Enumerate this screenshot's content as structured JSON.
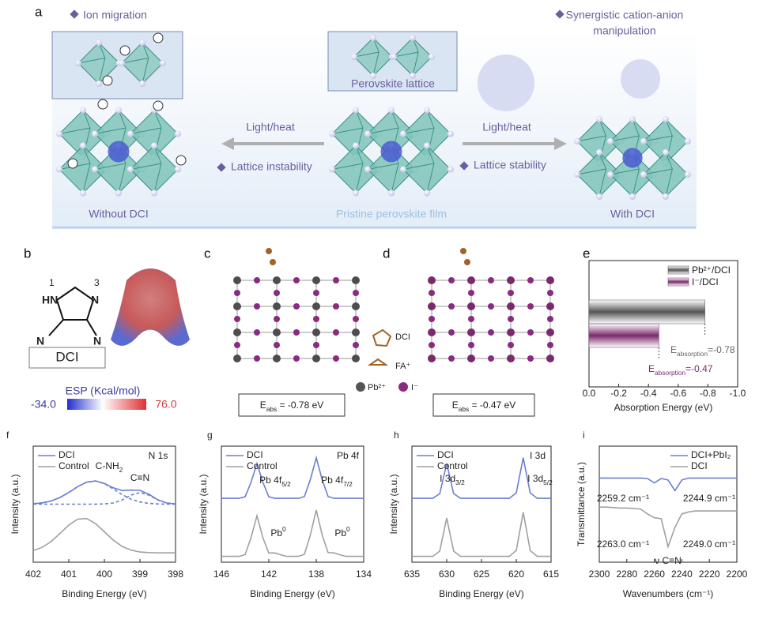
{
  "panel_a": {
    "label": "a",
    "ion_migration": "Ion migration",
    "perovskite_lattice": "Perovskite lattice",
    "left_arrow": "Light/heat",
    "lattice_instability": "Lattice instability",
    "right_arrow": "Light/heat",
    "lattice_stability": "Lattice stability",
    "synergistic": [
      "Synergistic cation-anion",
      "manipulation"
    ],
    "without": "Without DCI",
    "pristine": "Pristine perovskite film",
    "with": "With DCI"
  },
  "panel_b": {
    "label": "b",
    "atom_numbers": [
      "1",
      "3"
    ],
    "atoms": [
      "HN",
      "N",
      "N",
      "N"
    ],
    "name": "DCI",
    "esp_title": "ESP (Kcal/mol)",
    "esp_min": "-34.0",
    "esp_max": "76.0"
  },
  "panel_c": {
    "label": "c",
    "legend": [
      "DCI",
      "FA⁺",
      "Pb²⁺",
      "I⁻"
    ],
    "energy": {
      "text": "E",
      "sub": "abs",
      "tail": " = -0.78 eV"
    }
  },
  "panel_d": {
    "label": "d",
    "energy": {
      "text": "E",
      "sub": "abs",
      "tail": " = -0.47 eV"
    }
  },
  "chart_data": [
    {
      "type": "barh",
      "panel_label": "e",
      "xlabel": "Absorption Energy (eV)",
      "xlim": [
        0,
        -1
      ],
      "xticks": [
        {
          "value": 0,
          "label": "0.0"
        },
        -0.2,
        -0.4,
        -0.6,
        -0.8,
        {
          "value": -1,
          "label": "-1.0"
        }
      ],
      "legend": "upper right",
      "series": [
        {
          "name": "Pb²⁺/DCI",
          "color": "#555555",
          "values": [
            -0.78
          ]
        },
        {
          "name": "I⁻/DCI",
          "color": "#7a2a6c",
          "values": [
            -0.47
          ]
        }
      ],
      "annotations": [
        {
          "text": "E",
          "sub": "absorption",
          "tail": "=-0.78",
          "color": "#666666"
        },
        {
          "text": "E",
          "sub": "absorption",
          "tail": "=-0.47",
          "color": "#7a2a6c"
        }
      ]
    },
    {
      "type": "line",
      "panel_label": "f",
      "xlabel": "Binding Energy (eV)",
      "ylabel": "Intensity (a.u.)",
      "xlim": [
        402,
        398
      ],
      "xticks": [
        402,
        401,
        400,
        399,
        398
      ],
      "ylim": [
        0,
        10
      ],
      "legend": "upper left",
      "x": [
        402,
        401.75,
        401.5,
        401.25,
        401,
        400.75,
        400.5,
        400.25,
        400,
        399.75,
        399.5,
        399.25,
        399,
        398.75,
        398.5,
        398.25,
        398
      ],
      "series": [
        {
          "name": "DCI",
          "color": "#6b7fcf",
          "values": [
            5.04,
            5.11,
            5.27,
            5.57,
            6.01,
            6.51,
            6.89,
            7.0,
            6.78,
            6.41,
            6.18,
            6.21,
            6.19,
            5.85,
            5.38,
            5.1,
            5.02
          ]
        },
        {
          "name": "Control",
          "color": "#a0a0a0",
          "values": [
            1.0,
            1.28,
            1.77,
            2.47,
            3.2,
            3.71,
            3.76,
            3.33,
            2.62,
            1.9,
            1.36,
            1.04,
            0.88,
            0.83,
            0.8,
            0.8,
            0.8
          ]
        },
        {
          "color": "#6b7fcf",
          "dash": true,
          "values": [
            5.04,
            5.11,
            5.27,
            5.57,
            6.01,
            6.51,
            6.89,
            7.0,
            6.76,
            6.31,
            5.82,
            5.43,
            5.19,
            5.07,
            5.02,
            5.0,
            5.0
          ]
        },
        {
          "color": "#6b7fcf",
          "dash": true,
          "values": [
            5.0,
            5.0,
            5.0,
            5.0,
            5.0,
            5.0,
            5.0,
            5.0,
            5.02,
            5.1,
            5.36,
            5.78,
            6.0,
            5.78,
            5.36,
            5.1,
            5.02
          ]
        }
      ],
      "annotations": [
        "N 1s",
        {
          "text": "C-NH",
          "sub": "2"
        },
        "C≡N"
      ]
    },
    {
      "type": "line",
      "panel_label": "g",
      "xlabel": "Binding Energy (eV)",
      "ylabel": "Intensity (a.u.)",
      "xlim": [
        146,
        134
      ],
      "xticks": [
        146,
        142,
        138,
        134
      ],
      "ylim": [
        0,
        10
      ],
      "legend": "upper left",
      "x": [
        146,
        145.5,
        145,
        144.5,
        144,
        143.5,
        143,
        142.5,
        142,
        141.5,
        141,
        140.5,
        140,
        139.5,
        139,
        138.5,
        138,
        137.5,
        137,
        136.5,
        136,
        135.5,
        135,
        134.5,
        134
      ],
      "series": [
        {
          "name": "DCI",
          "color": "#6b7fcf",
          "values": [
            5.5,
            5.5,
            5.5,
            5.5,
            5.63,
            6.88,
            8.5,
            6.88,
            5.63,
            5.5,
            5.5,
            5.5,
            5.5,
            5.5,
            5.65,
            7.11,
            9.0,
            7.11,
            5.65,
            5.5,
            5.5,
            5.5,
            5.5,
            5.5,
            5.5
          ]
        },
        {
          "name": "Control",
          "color": "#a0a0a0",
          "values": [
            0.5,
            0.5,
            0.5,
            0.5,
            0.65,
            2.11,
            4.0,
            2.11,
            0.79,
            0.8,
            0.64,
            0.5,
            0.5,
            0.5,
            0.68,
            2.34,
            4.5,
            2.34,
            0.82,
            0.8,
            0.64,
            0.5,
            0.5,
            0.5,
            0.5
          ]
        }
      ],
      "annotations": [
        "Pb 4f",
        {
          "text": "Pb 4f",
          "sub": "5/2"
        },
        {
          "text": "Pb 4f",
          "sub": "7/2"
        },
        {
          "text": "Pb",
          "sup": "0"
        },
        {
          "text": "Pb",
          "sup": "0"
        }
      ]
    },
    {
      "type": "line",
      "panel_label": "h",
      "xlabel": "Binding Energy (eV)",
      "ylabel": "Intensity (a.u.)",
      "xlim": [
        635,
        615
      ],
      "xticks": [
        635,
        630,
        625,
        620,
        615
      ],
      "ylim": [
        0,
        10
      ],
      "legend": "upper left",
      "x": [
        635,
        634,
        633,
        632,
        631,
        630,
        629,
        628,
        627,
        626,
        625,
        624,
        623,
        622,
        621,
        620,
        619,
        618,
        617,
        616,
        615
      ],
      "series": [
        {
          "name": "DCI",
          "color": "#6b7fcf",
          "values": [
            5.5,
            5.5,
            5.5,
            5.5,
            5.9,
            8.5,
            5.9,
            5.5,
            5.5,
            5.5,
            5.5,
            5.5,
            5.5,
            5.5,
            5.5,
            5.97,
            9.0,
            5.97,
            5.5,
            5.5,
            5.5
          ]
        },
        {
          "name": "Control",
          "color": "#a0a0a0",
          "values": [
            0.5,
            0.5,
            0.5,
            0.5,
            0.95,
            3.8,
            0.95,
            0.5,
            0.5,
            0.5,
            0.5,
            0.5,
            0.5,
            0.5,
            0.5,
            1.01,
            4.3,
            1.01,
            0.5,
            0.5,
            0.5
          ]
        }
      ],
      "annotations": [
        "I 3d",
        {
          "text": "I 3d",
          "sub": "3/2"
        },
        {
          "text": "I 3d",
          "sub": "5/2"
        }
      ]
    },
    {
      "type": "line",
      "panel_label": "i",
      "xlabel": "Wavenumbers (cm⁻¹)",
      "ylabel": "Transmittance (a.u.)",
      "xlim": [
        2300,
        2200
      ],
      "xticks": [
        2300,
        2280,
        2260,
        2240,
        2220,
        2200
      ],
      "ylim": [
        0,
        12
      ],
      "legend": "upper right",
      "x": [
        2300,
        2295,
        2290,
        2285,
        2280,
        2275,
        2270,
        2265,
        2260,
        2255,
        2250,
        2245,
        2240,
        2235,
        2230,
        2225,
        2220,
        2215,
        2210,
        2205,
        2200
      ],
      "series": [
        {
          "name": "DCI+PbI₂",
          "color": "#6b7fcf",
          "values": [
            8.7,
            8.7,
            8.7,
            8.7,
            8.7,
            8.7,
            8.7,
            8.65,
            8.2,
            8.65,
            8.5,
            7.4,
            8.5,
            8.7,
            8.7,
            8.7,
            8.7,
            8.7,
            8.7,
            8.7,
            8.7
          ]
        },
        {
          "name": "DCI",
          "color": "#a0a0a0",
          "values": [
            5.7,
            5.7,
            5.65,
            5.6,
            5.6,
            5.55,
            5.5,
            5.0,
            4.6,
            4.5,
            1.6,
            3.6,
            5.0,
            5.2,
            5.3,
            5.3,
            5.3,
            5.3,
            5.3,
            5.3,
            5.3
          ]
        }
      ],
      "annotations": [
        "2259.2 cm⁻¹",
        "2244.9 cm⁻¹",
        "2263.0 cm⁻¹",
        "2249.0 cm⁻¹",
        "ν C≡N"
      ]
    }
  ]
}
